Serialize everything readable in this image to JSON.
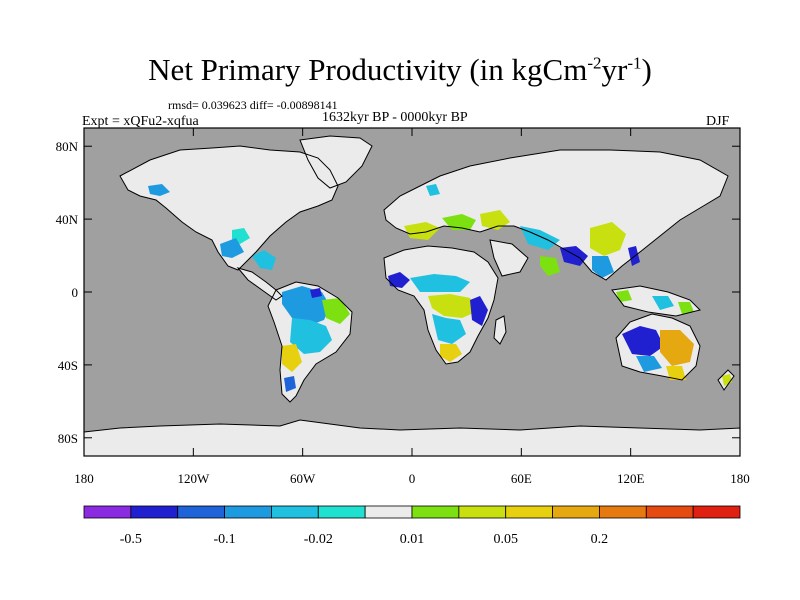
{
  "title": {
    "main": "Net Primary Productivity (in kgCm",
    "exp1": "-2",
    "mid": "yr",
    "exp2": "-1",
    "end": ")"
  },
  "stats_text": "rmsd= 0.039623 diff= -0.00898141",
  "experiment_label": "Expt = xQFu2-xqfua",
  "period_label": "1632kyr BP - 0000kyr BP",
  "season_label": "DJF",
  "map": {
    "projection": "cylindrical equidistant",
    "lon_range": [
      -180,
      180
    ],
    "lat_range": [
      -90,
      90
    ],
    "y_ticks": [
      {
        "value": 80,
        "label": "80N"
      },
      {
        "value": 40,
        "label": "40N"
      },
      {
        "value": 0,
        "label": "0"
      },
      {
        "value": -40,
        "label": "40S"
      },
      {
        "value": -80,
        "label": "80S"
      }
    ],
    "x_ticks": [
      {
        "value": -180,
        "label": "180"
      },
      {
        "value": -120,
        "label": "120W"
      },
      {
        "value": -60,
        "label": "60W"
      },
      {
        "value": 0,
        "label": "0"
      },
      {
        "value": 60,
        "label": "60E"
      },
      {
        "value": 120,
        "label": "120E"
      },
      {
        "value": 180,
        "label": "180"
      }
    ],
    "colors": {
      "ocean": "#a0a0a0",
      "near_zero_land": "#ebebeb",
      "coast": "#000000"
    }
  },
  "colorbar": {
    "colors": [
      "#8a2be2",
      "#2020d0",
      "#1e64d8",
      "#1e9be0",
      "#20c0e0",
      "#20e0d0",
      "#ebebeb",
      "#7de010",
      "#c8e010",
      "#e6d010",
      "#e6a810",
      "#e67a10",
      "#e64a10",
      "#e02010"
    ],
    "labels": [
      {
        "after_box": 1,
        "text": "-0.5"
      },
      {
        "after_box": 3,
        "text": "-0.1"
      },
      {
        "after_box": 5,
        "text": "-0.02"
      },
      {
        "after_box": 7,
        "text": "0.01"
      },
      {
        "after_box": 9,
        "text": "0.05"
      },
      {
        "after_box": 11,
        "text": "0.2"
      }
    ]
  }
}
